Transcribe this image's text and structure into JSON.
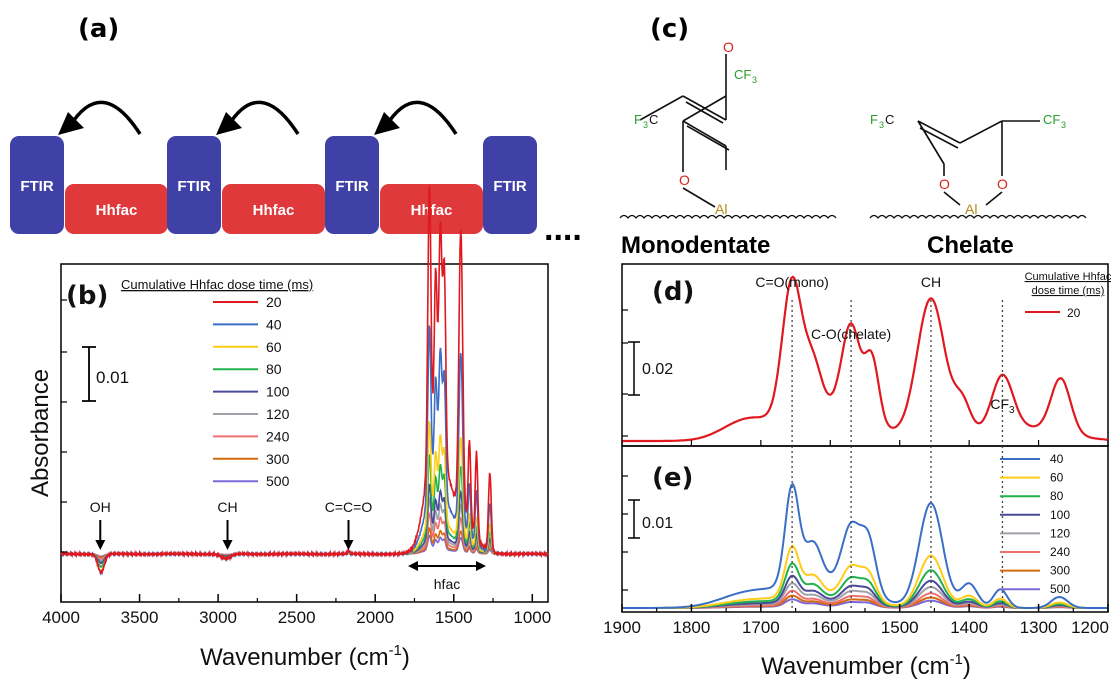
{
  "panels": {
    "a": "(a)",
    "b": "(b)",
    "c": "(c)",
    "d": "(d)",
    "e": "(e)"
  },
  "sequence": {
    "blocks": [
      "FTIR",
      "Hhfac",
      "FTIR",
      "Hhfac",
      "FTIR",
      "Hhfac",
      "FTIR"
    ],
    "ellipsis": "....",
    "colors": {
      "ftir": "#3f41a6",
      "hhfac": "#e0393b"
    }
  },
  "structures": {
    "monodentate": {
      "title": "Monodentate",
      "labels": {
        "cf3_top": "CF",
        "cf3_top_sub": "3",
        "f3c": "F",
        "f3c_sub": "3",
        "f3c_c": "C",
        "o_top": "O",
        "o_bottom": "O",
        "al": "Al"
      }
    },
    "chelate": {
      "title": "Chelate",
      "labels": {
        "f3c": "F",
        "f3c_sub": "3",
        "f3c_c": "C",
        "cf3": "CF",
        "cf3_sub": "3",
        "o_left": "O",
        "o_right": "O",
        "al": "Al"
      }
    }
  },
  "chart_data": [
    {
      "id": "b",
      "type": "line",
      "xlabel": "Wavenumber (cm",
      "xlabel_sup": "-1",
      "xlabel_end": ")",
      "ylabel": "Absorbance",
      "xlim": [
        4000,
        900
      ],
      "x_ticks": [
        "4000",
        "3500",
        "3000",
        "2500",
        "2000",
        "1500",
        "1000"
      ],
      "scale_bar": "0.01",
      "legend_title": "Cumulative Hhfac dose time (ms)",
      "series": [
        {
          "name": "20",
          "color": "#e0181f",
          "scale": 1.0
        },
        {
          "name": "40",
          "color": "#3b6fc6",
          "scale": 0.62
        },
        {
          "name": "60",
          "color": "#ffcc1a",
          "scale": 0.36
        },
        {
          "name": "80",
          "color": "#22b24c",
          "scale": 0.27
        },
        {
          "name": "100",
          "color": "#4a4a9a",
          "scale": 0.19
        },
        {
          "name": "120",
          "color": "#a0a0a8",
          "scale": 0.15
        },
        {
          "name": "240",
          "color": "#f07070",
          "scale": 0.11
        },
        {
          "name": "300",
          "color": "#d46a10",
          "scale": 0.07
        },
        {
          "name": "500",
          "color": "#7d68d8",
          "scale": 0.05
        }
      ],
      "annotations": [
        {
          "text": "OH",
          "x": 3750
        },
        {
          "text": "CH",
          "x": 2940
        },
        {
          "text": "C=C=O",
          "x": 2170
        }
      ],
      "range_label": "hfac"
    },
    {
      "id": "d",
      "type": "line",
      "xlim": [
        1900,
        1200
      ],
      "scale_bar": "0.02",
      "legend_title_1": "Cumulative Hhfac",
      "legend_title_2": "dose time (ms)",
      "series": [
        {
          "name": "20",
          "color": "#e0181f"
        }
      ],
      "peaks": [
        {
          "text": "C=O(mono)",
          "x": 1655
        },
        {
          "text": "C-O(chelate)",
          "x": 1570
        },
        {
          "text": "CH",
          "x": 1455
        },
        {
          "text": "CF",
          "sub": "3",
          "x": 1352
        }
      ]
    },
    {
      "id": "e",
      "type": "line",
      "xlabel": "Wavenumber (cm",
      "xlabel_sup": "-1",
      "xlabel_end": ")",
      "xlim": [
        1900,
        1200
      ],
      "x_ticks": [
        "1900",
        "1800",
        "1700",
        "1600",
        "1500",
        "1400",
        "1300",
        "1200"
      ],
      "scale_bar": "0.01",
      "series": [
        {
          "name": "40",
          "color": "#3b6fc6",
          "scale": 1.0
        },
        {
          "name": "60",
          "color": "#ffcc1a",
          "scale": 0.5
        },
        {
          "name": "80",
          "color": "#22b24c",
          "scale": 0.36
        },
        {
          "name": "100",
          "color": "#4a4a9a",
          "scale": 0.26
        },
        {
          "name": "120",
          "color": "#a0a0a8",
          "scale": 0.2
        },
        {
          "name": "240",
          "color": "#f07070",
          "scale": 0.14
        },
        {
          "name": "300",
          "color": "#d46a10",
          "scale": 0.1
        },
        {
          "name": "500",
          "color": "#7d68d8",
          "scale": 0.07
        }
      ]
    }
  ]
}
